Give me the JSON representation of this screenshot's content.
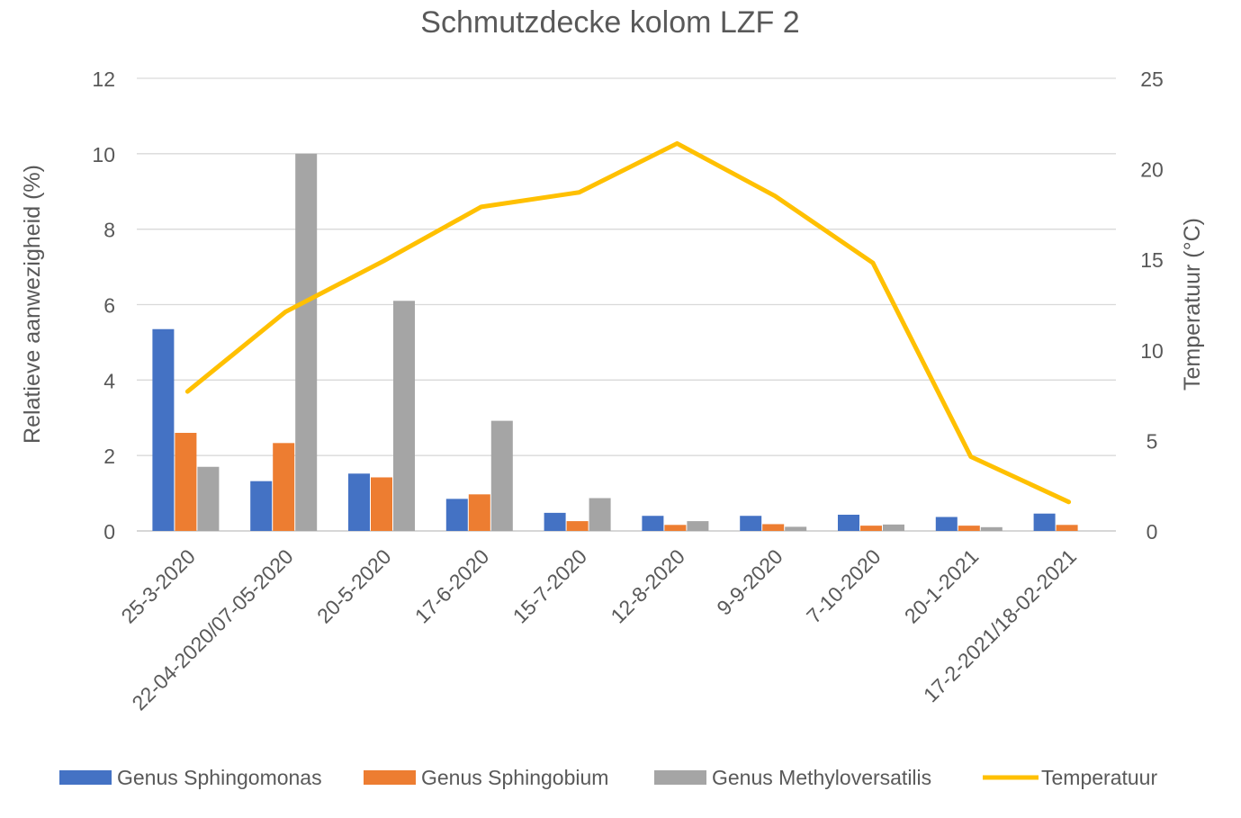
{
  "chart_data": {
    "type": "bar",
    "title": "Schmutzdecke kolom LZF 2",
    "ylabel": "Relatieve aanwezigheid (%)",
    "y2label": "Temperatuur (°C)",
    "ylim": [
      0,
      12
    ],
    "y2lim": [
      0,
      25
    ],
    "yticks": [
      "0",
      "2",
      "4",
      "6",
      "8",
      "10",
      "12"
    ],
    "y2ticks": [
      "0",
      "5",
      "10",
      "15",
      "20",
      "25"
    ],
    "grid": true,
    "legend_position": "bottom",
    "categories": [
      "25-3-2020",
      "22-04-2020/07-05-2020",
      "20-5-2020",
      "17-6-2020",
      "15-7-2020",
      "12-8-2020",
      "9-9-2020",
      "7-10-2020",
      "20-1-2021",
      "17-2-2021/18-02-2021"
    ],
    "series": [
      {
        "name": "Genus Sphingomonas",
        "type": "bar",
        "axis": "left",
        "color": "#4472C4",
        "values": [
          5.35,
          1.32,
          1.52,
          0.85,
          0.48,
          0.4,
          0.4,
          0.43,
          0.37,
          0.46
        ]
      },
      {
        "name": "Genus Sphingobium",
        "type": "bar",
        "axis": "left",
        "color": "#ED7D31",
        "values": [
          2.6,
          2.33,
          1.42,
          0.97,
          0.26,
          0.16,
          0.18,
          0.14,
          0.14,
          0.16
        ]
      },
      {
        "name": "Genus Methyloversatilis",
        "type": "bar",
        "axis": "left",
        "color": "#A5A5A5",
        "values": [
          1.7,
          10.0,
          6.1,
          2.92,
          0.87,
          0.26,
          0.11,
          0.17,
          0.1,
          0.0
        ]
      },
      {
        "name": "Temperatuur",
        "type": "line",
        "axis": "right",
        "color": "#FFC000",
        "values": [
          7.7,
          12.1,
          14.9,
          17.9,
          18.7,
          21.4,
          18.5,
          14.8,
          4.1,
          1.6
        ]
      }
    ]
  }
}
